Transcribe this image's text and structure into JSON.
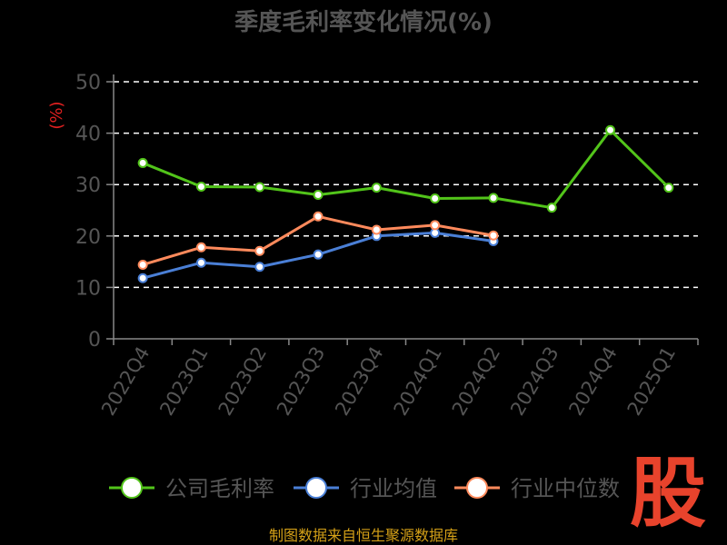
{
  "chart_data": {
    "type": "line",
    "title": "季度毛利率变化情况(%)",
    "ylabel": "(%)",
    "xlabel": "",
    "categories": [
      "2022Q4",
      "2023Q1",
      "2023Q2",
      "2023Q3",
      "2023Q4",
      "2024Q1",
      "2024Q2",
      "2024Q3",
      "2024Q4",
      "2025Q1"
    ],
    "ylim": [
      0,
      50
    ],
    "yticks": [
      0,
      10,
      20,
      30,
      40,
      50
    ],
    "grid": true,
    "legend_position": "bottom",
    "series": [
      {
        "name": "公司毛利率",
        "color": "#52c41a",
        "values": [
          34.2,
          29.6,
          29.5,
          28.0,
          29.4,
          27.3,
          27.4,
          25.5,
          40.6,
          29.4
        ]
      },
      {
        "name": "行业均值",
        "color": "#4a7fd6",
        "values": [
          11.8,
          14.8,
          14.0,
          16.4,
          20.0,
          20.6,
          19.0,
          null,
          null,
          null
        ]
      },
      {
        "name": "行业中位数",
        "color": "#ff8a5c",
        "values": [
          14.4,
          17.8,
          17.1,
          23.8,
          21.2,
          22.1,
          20.1,
          null,
          null,
          null
        ]
      }
    ]
  },
  "footer": {
    "source": "制图数据来自恒生聚源数据库",
    "logo_text": "股"
  },
  "colors": {
    "background": "#000000",
    "title": "#555555",
    "axis": "#888888",
    "tick_label": "#555555",
    "grid": "#ffffff",
    "ylabel": "#e02020",
    "source": "#d4a017",
    "logo": "#e8432c"
  }
}
